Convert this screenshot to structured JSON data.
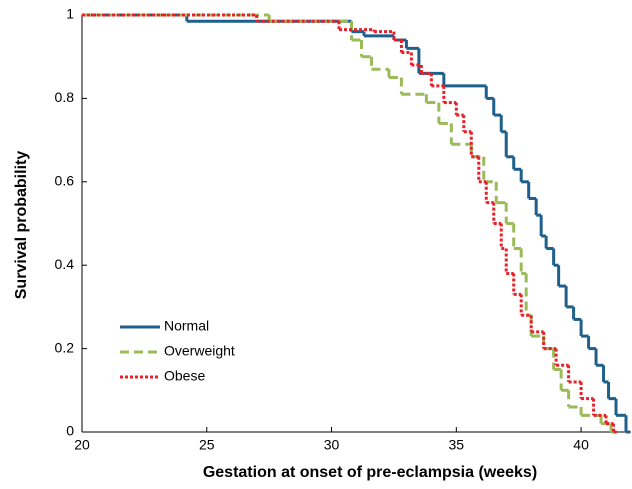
{
  "chart_data": {
    "type": "step",
    "x_label": "Gestation at onset of pre-eclampsia (weeks)",
    "y_label": "Survival probability",
    "xlim": [
      20,
      42
    ],
    "ylim": [
      0,
      1
    ],
    "xticks": [
      20,
      25,
      30,
      35,
      40
    ],
    "yticks": [
      0,
      0.2,
      0.4,
      0.6,
      0.8,
      1
    ],
    "legend": "lower left",
    "series": [
      {
        "name": "Normal",
        "color": "#1f5f8b",
        "style": "solid",
        "x": [
          20,
          24.2,
          30.8,
          31.3,
          32.5,
          33,
          33.5,
          34.5,
          36.2,
          36.5,
          36.8,
          37,
          37.3,
          37.6,
          37.9,
          38.2,
          38.4,
          38.6,
          38.9,
          39.1,
          39.4,
          39.7,
          40,
          40.3,
          40.6,
          40.9,
          41.1,
          41.4,
          41.8
        ],
        "values": [
          1,
          0.985,
          0.96,
          0.95,
          0.94,
          0.92,
          0.86,
          0.83,
          0.8,
          0.76,
          0.72,
          0.66,
          0.63,
          0.6,
          0.56,
          0.52,
          0.47,
          0.44,
          0.4,
          0.35,
          0.3,
          0.27,
          0.23,
          0.2,
          0.16,
          0.12,
          0.08,
          0.04,
          0
        ]
      },
      {
        "name": "Overweight",
        "color": "#9bbb59",
        "style": "dashed",
        "x": [
          20,
          27.5,
          30.8,
          31.2,
          31.6,
          32.3,
          32.8,
          33.8,
          34.3,
          34.8,
          35.6,
          36.1,
          36.6,
          37,
          37.3,
          37.6,
          37.8,
          38,
          38.5,
          38.9,
          39.2,
          39.5,
          40,
          40.8,
          41.2
        ],
        "values": [
          1,
          0.985,
          0.94,
          0.9,
          0.87,
          0.85,
          0.81,
          0.79,
          0.74,
          0.69,
          0.66,
          0.6,
          0.55,
          0.5,
          0.44,
          0.38,
          0.28,
          0.23,
          0.2,
          0.15,
          0.1,
          0.06,
          0.04,
          0.02,
          0
        ]
      },
      {
        "name": "Obese",
        "color": "#e8202a",
        "style": "dotted",
        "x": [
          20,
          27,
          30.3,
          31.7,
          32.5,
          32.8,
          33.2,
          33.6,
          34,
          34.5,
          35,
          35.3,
          35.6,
          35.9,
          36.2,
          36.5,
          36.8,
          37,
          37.3,
          37.6,
          38,
          38.5,
          39,
          39.5,
          40,
          40.5,
          41,
          41.3
        ],
        "values": [
          1,
          0.985,
          0.965,
          0.96,
          0.94,
          0.91,
          0.88,
          0.86,
          0.83,
          0.79,
          0.76,
          0.72,
          0.66,
          0.6,
          0.55,
          0.5,
          0.44,
          0.38,
          0.33,
          0.28,
          0.24,
          0.2,
          0.16,
          0.12,
          0.08,
          0.04,
          0.02,
          0
        ]
      }
    ]
  }
}
